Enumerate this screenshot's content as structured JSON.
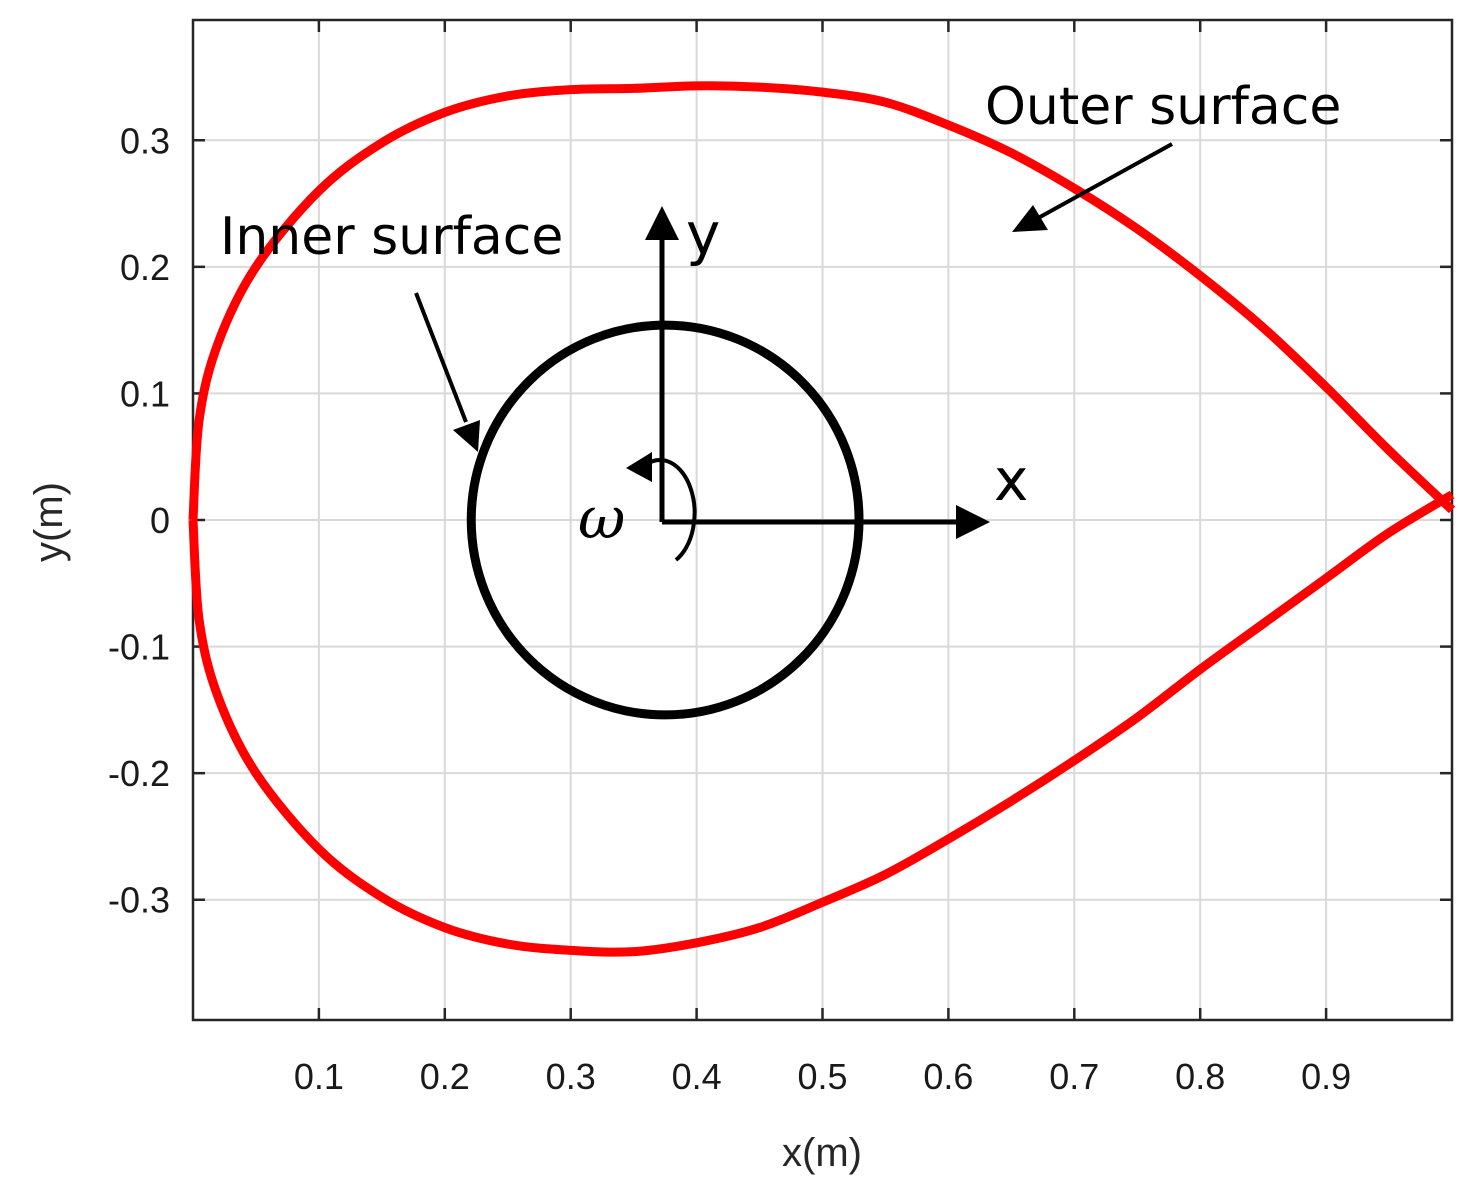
{
  "chart_data": {
    "type": "line",
    "xlabel": "x(m)",
    "ylabel": "y(m)",
    "xlim": [
      0,
      1
    ],
    "ylim": [
      -0.395,
      0.395
    ],
    "grid": true,
    "x_ticks": [
      0.1,
      0.2,
      0.3,
      0.4,
      0.5,
      0.6,
      0.7,
      0.8,
      0.9
    ],
    "y_ticks": [
      0.3,
      0.2,
      0.1,
      0,
      -0.1,
      -0.2,
      -0.3
    ],
    "x_tick_labels": [
      "0.1",
      "0.2",
      "0.3",
      "0.4",
      "0.5",
      "0.6",
      "0.7",
      "0.8",
      "0.9"
    ],
    "y_tick_labels": [
      "0.3",
      "0.2",
      "0.1",
      "0",
      "-0.1",
      "-0.2",
      "-0.3"
    ],
    "series": [
      {
        "color": "#ff0000",
        "x": [
          1.0,
          0.95,
          0.9,
          0.85,
          0.8,
          0.75,
          0.7,
          0.65,
          0.6,
          0.55,
          0.5,
          0.45,
          0.4,
          0.35,
          0.3,
          0.25,
          0.2,
          0.15,
          0.1,
          0.05,
          0.02,
          0.005,
          0.0
        ],
        "y": [
          0.008,
          0.055,
          0.105,
          0.152,
          0.193,
          0.23,
          0.262,
          0.29,
          0.312,
          0.33,
          0.338,
          0.342,
          0.343,
          0.341,
          0.34,
          0.335,
          0.322,
          0.298,
          0.26,
          0.2,
          0.14,
          0.08,
          0.0
        ]
      },
      {
        "color": "#ff0000",
        "x": [
          0.0,
          0.005,
          0.02,
          0.05,
          0.1,
          0.15,
          0.2,
          0.25,
          0.3,
          0.35,
          0.4,
          0.45,
          0.5,
          0.55,
          0.6,
          0.65,
          0.7,
          0.75,
          0.8,
          0.85,
          0.9,
          0.95,
          1.0
        ],
        "y": [
          0.0,
          -0.08,
          -0.14,
          -0.2,
          -0.26,
          -0.298,
          -0.322,
          -0.335,
          -0.34,
          -0.341,
          -0.334,
          -0.322,
          -0.302,
          -0.28,
          -0.252,
          -0.222,
          -0.19,
          -0.156,
          -0.118,
          -0.082,
          -0.046,
          -0.01,
          0.02
        ]
      }
    ],
    "circle": {
      "center": [
        0.375,
        0.0
      ],
      "radius": 0.154,
      "color": "#000000"
    },
    "annotations": {
      "outer": "Outer surface",
      "inner": "Inner surface",
      "x_axis": "x",
      "y_axis": "y",
      "omega": "ω"
    }
  }
}
